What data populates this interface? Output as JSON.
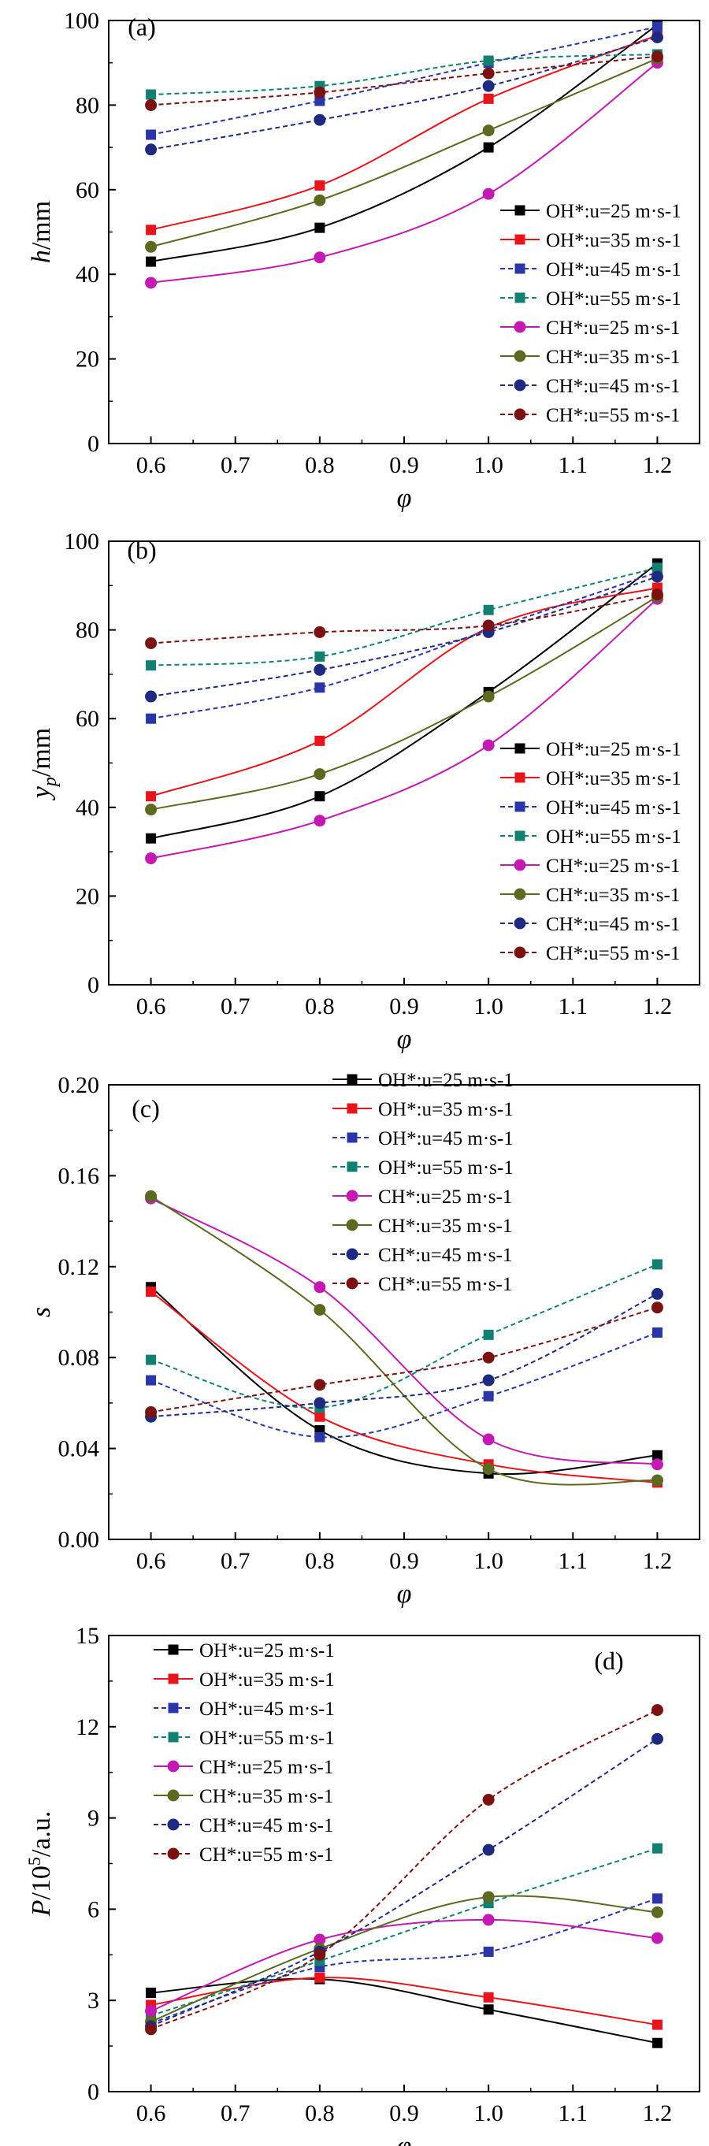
{
  "style": {
    "colors": {
      "OH_25": "#000000",
      "OH_35": "#e8141c",
      "OH_45": "#2a35a8",
      "OH_55": "#128070",
      "CH_25": "#c21ab2",
      "CH_35": "#5b6a20",
      "CH_45": "#1e2980",
      "CH_55": "#7a1212"
    }
  },
  "chart_data": [
    {
      "type": "line",
      "panel": "(a)",
      "xlabel": "φ",
      "ylabel_main": "h",
      "ylabel_unit": "/mm",
      "xlim": [
        0.55,
        1.25
      ],
      "ylim": [
        0,
        100
      ],
      "xticks": [
        "0.6",
        "0.7",
        "0.8",
        "0.9",
        "1.0",
        "1.1",
        "1.2"
      ],
      "yticks": [
        "0",
        "20",
        "40",
        "60",
        "80",
        "100"
      ],
      "legend_position": "lower-right",
      "x": [
        0.6,
        0.8,
        1.0,
        1.2
      ],
      "series": [
        {
          "species": "OH*",
          "speed": "u=25 m·s-1",
          "marker": "square",
          "dashed": false,
          "color": "#000000",
          "values": [
            43,
            51,
            70,
            99
          ]
        },
        {
          "species": "OH*",
          "speed": "u=35 m·s-1",
          "marker": "square",
          "dashed": false,
          "color": "#e8141c",
          "values": [
            50.5,
            61,
            81.5,
            96.5
          ]
        },
        {
          "species": "OH*",
          "speed": "u=45 m·s-1",
          "marker": "square",
          "dashed": true,
          "color": "#2a35a8",
          "values": [
            73,
            81,
            90,
            98.5
          ]
        },
        {
          "species": "OH*",
          "speed": "u=55 m·s-1",
          "marker": "square",
          "dashed": true,
          "color": "#128070",
          "values": [
            82.5,
            84.5,
            90.5,
            92
          ]
        },
        {
          "species": "CH*",
          "speed": "u=25 m·s-1",
          "marker": "circle",
          "dashed": false,
          "color": "#c21ab2",
          "values": [
            38,
            44,
            59,
            90
          ]
        },
        {
          "species": "CH*",
          "speed": "u=35 m·s-1",
          "marker": "circle",
          "dashed": false,
          "color": "#5b6a20",
          "values": [
            46.5,
            57.5,
            74,
            91
          ]
        },
        {
          "species": "CH*",
          "speed": "u=45 m·s-1",
          "marker": "circle",
          "dashed": true,
          "color": "#1e2980",
          "values": [
            69.5,
            76.5,
            84.5,
            96
          ]
        },
        {
          "species": "CH*",
          "speed": "u=55 m·s-1",
          "marker": "circle",
          "dashed": true,
          "color": "#7a1212",
          "values": [
            80,
            83,
            87.5,
            91.5
          ]
        }
      ]
    },
    {
      "type": "line",
      "panel": "(b)",
      "xlabel": "φ",
      "ylabel_main": "y",
      "ylabel_sub": "p",
      "ylabel_unit": "/mm",
      "xlim": [
        0.55,
        1.25
      ],
      "ylim": [
        0,
        100
      ],
      "xticks": [
        "0.6",
        "0.7",
        "0.8",
        "0.9",
        "1.0",
        "1.1",
        "1.2"
      ],
      "yticks": [
        "0",
        "20",
        "40",
        "60",
        "80",
        "100"
      ],
      "legend_position": "lower-right",
      "x": [
        0.6,
        0.8,
        1.0,
        1.2
      ],
      "series": [
        {
          "species": "OH*",
          "speed": "u=25 m·s-1",
          "marker": "square",
          "dashed": false,
          "color": "#000000",
          "values": [
            33,
            42.5,
            66,
            95
          ]
        },
        {
          "species": "OH*",
          "speed": "u=35 m·s-1",
          "marker": "square",
          "dashed": false,
          "color": "#e8141c",
          "values": [
            42.5,
            55,
            80.5,
            89.5
          ]
        },
        {
          "species": "OH*",
          "speed": "u=45 m·s-1",
          "marker": "square",
          "dashed": true,
          "color": "#2a35a8",
          "values": [
            60,
            67,
            80,
            93
          ]
        },
        {
          "species": "OH*",
          "speed": "u=55 m·s-1",
          "marker": "square",
          "dashed": true,
          "color": "#128070",
          "values": [
            72,
            74,
            84.5,
            94
          ]
        },
        {
          "species": "CH*",
          "speed": "u=25 m·s-1",
          "marker": "circle",
          "dashed": false,
          "color": "#c21ab2",
          "values": [
            28.5,
            37,
            54,
            87
          ]
        },
        {
          "species": "CH*",
          "speed": "u=35 m·s-1",
          "marker": "circle",
          "dashed": false,
          "color": "#5b6a20",
          "values": [
            39.5,
            47.5,
            65,
            87.5
          ]
        },
        {
          "species": "CH*",
          "speed": "u=45 m·s-1",
          "marker": "circle",
          "dashed": true,
          "color": "#1e2980",
          "values": [
            65,
            71,
            79.5,
            92
          ]
        },
        {
          "species": "CH*",
          "speed": "u=55 m·s-1",
          "marker": "circle",
          "dashed": true,
          "color": "#7a1212",
          "values": [
            77,
            79.5,
            81,
            88
          ]
        }
      ]
    },
    {
      "type": "line",
      "panel": "(c)",
      "xlabel": "φ",
      "ylabel_main": "s",
      "ylabel_unit": "",
      "xlim": [
        0.55,
        1.25
      ],
      "ylim": [
        0,
        0.2
      ],
      "xticks": [
        "0.6",
        "0.7",
        "0.8",
        "0.9",
        "1.0",
        "1.1",
        "1.2"
      ],
      "yticks": [
        "0.00",
        "0.04",
        "0.08",
        "0.12",
        "0.16",
        "0.20"
      ],
      "legend_position": "top-center",
      "x": [
        0.6,
        0.8,
        1.0,
        1.2
      ],
      "series": [
        {
          "species": "OH*",
          "speed": "u=25 m·s-1",
          "marker": "square",
          "dashed": false,
          "color": "#000000",
          "values": [
            0.111,
            0.048,
            0.029,
            0.037
          ]
        },
        {
          "species": "OH*",
          "speed": "u=35 m·s-1",
          "marker": "square",
          "dashed": false,
          "color": "#e8141c",
          "values": [
            0.109,
            0.054,
            0.033,
            0.025
          ]
        },
        {
          "species": "OH*",
          "speed": "u=45 m·s-1",
          "marker": "square",
          "dashed": true,
          "color": "#2a35a8",
          "values": [
            0.07,
            0.045,
            0.063,
            0.091
          ]
        },
        {
          "species": "OH*",
          "speed": "u=55 m·s-1",
          "marker": "square",
          "dashed": true,
          "color": "#128070",
          "values": [
            0.079,
            0.058,
            0.09,
            0.121
          ]
        },
        {
          "species": "CH*",
          "speed": "u=25 m·s-1",
          "marker": "circle",
          "dashed": false,
          "color": "#c21ab2",
          "values": [
            0.15,
            0.111,
            0.044,
            0.033
          ]
        },
        {
          "species": "CH*",
          "speed": "u=35 m·s-1",
          "marker": "circle",
          "dashed": false,
          "color": "#5b6a20",
          "values": [
            0.151,
            0.101,
            0.031,
            0.026
          ]
        },
        {
          "species": "CH*",
          "speed": "u=45 m·s-1",
          "marker": "circle",
          "dashed": true,
          "color": "#1e2980",
          "values": [
            0.054,
            0.06,
            0.07,
            0.108
          ]
        },
        {
          "species": "CH*",
          "speed": "u=55 m·s-1",
          "marker": "circle",
          "dashed": true,
          "color": "#7a1212",
          "values": [
            0.056,
            0.068,
            0.08,
            0.102
          ]
        }
      ]
    },
    {
      "type": "line",
      "panel": "(d)",
      "xlabel": "φ",
      "ylabel_main": "P",
      "ylabel_unit": "/10",
      "ylabel_sup": "5",
      "ylabel_tail": "/a.u.",
      "xlim": [
        0.55,
        1.25
      ],
      "ylim": [
        0,
        15
      ],
      "xticks": [
        "0.6",
        "0.7",
        "0.8",
        "0.9",
        "1.0",
        "1.1",
        "1.2"
      ],
      "yticks": [
        "0",
        "3",
        "6",
        "9",
        "12",
        "15"
      ],
      "legend_position": "top-left",
      "x": [
        0.6,
        0.8,
        1.0,
        1.2
      ],
      "series": [
        {
          "species": "OH*",
          "speed": "u=25 m·s-1",
          "marker": "square",
          "dashed": false,
          "color": "#000000",
          "values": [
            3.25,
            3.7,
            2.7,
            1.6
          ]
        },
        {
          "species": "OH*",
          "speed": "u=35 m·s-1",
          "marker": "square",
          "dashed": false,
          "color": "#e8141c",
          "values": [
            2.85,
            3.75,
            3.1,
            2.2
          ]
        },
        {
          "species": "OH*",
          "speed": "u=45 m·s-1",
          "marker": "square",
          "dashed": true,
          "color": "#2a35a8",
          "values": [
            2.25,
            4.1,
            4.6,
            6.35
          ]
        },
        {
          "species": "OH*",
          "speed": "u=55 m·s-1",
          "marker": "square",
          "dashed": true,
          "color": "#128070",
          "values": [
            2.5,
            4.3,
            6.2,
            8.0
          ]
        },
        {
          "species": "CH*",
          "speed": "u=25 m·s-1",
          "marker": "circle",
          "dashed": false,
          "color": "#c21ab2",
          "values": [
            2.65,
            5.0,
            5.65,
            5.05
          ]
        },
        {
          "species": "CH*",
          "speed": "u=35 m·s-1",
          "marker": "circle",
          "dashed": false,
          "color": "#5b6a20",
          "values": [
            2.3,
            4.7,
            6.4,
            5.9
          ]
        },
        {
          "species": "CH*",
          "speed": "u=45 m·s-1",
          "marker": "circle",
          "dashed": true,
          "color": "#1e2980",
          "values": [
            2.15,
            4.6,
            7.95,
            11.6
          ]
        },
        {
          "species": "CH*",
          "speed": "u=55 m·s-1",
          "marker": "circle",
          "dashed": true,
          "color": "#7a1212",
          "values": [
            2.05,
            4.5,
            9.6,
            12.55
          ]
        }
      ]
    }
  ]
}
